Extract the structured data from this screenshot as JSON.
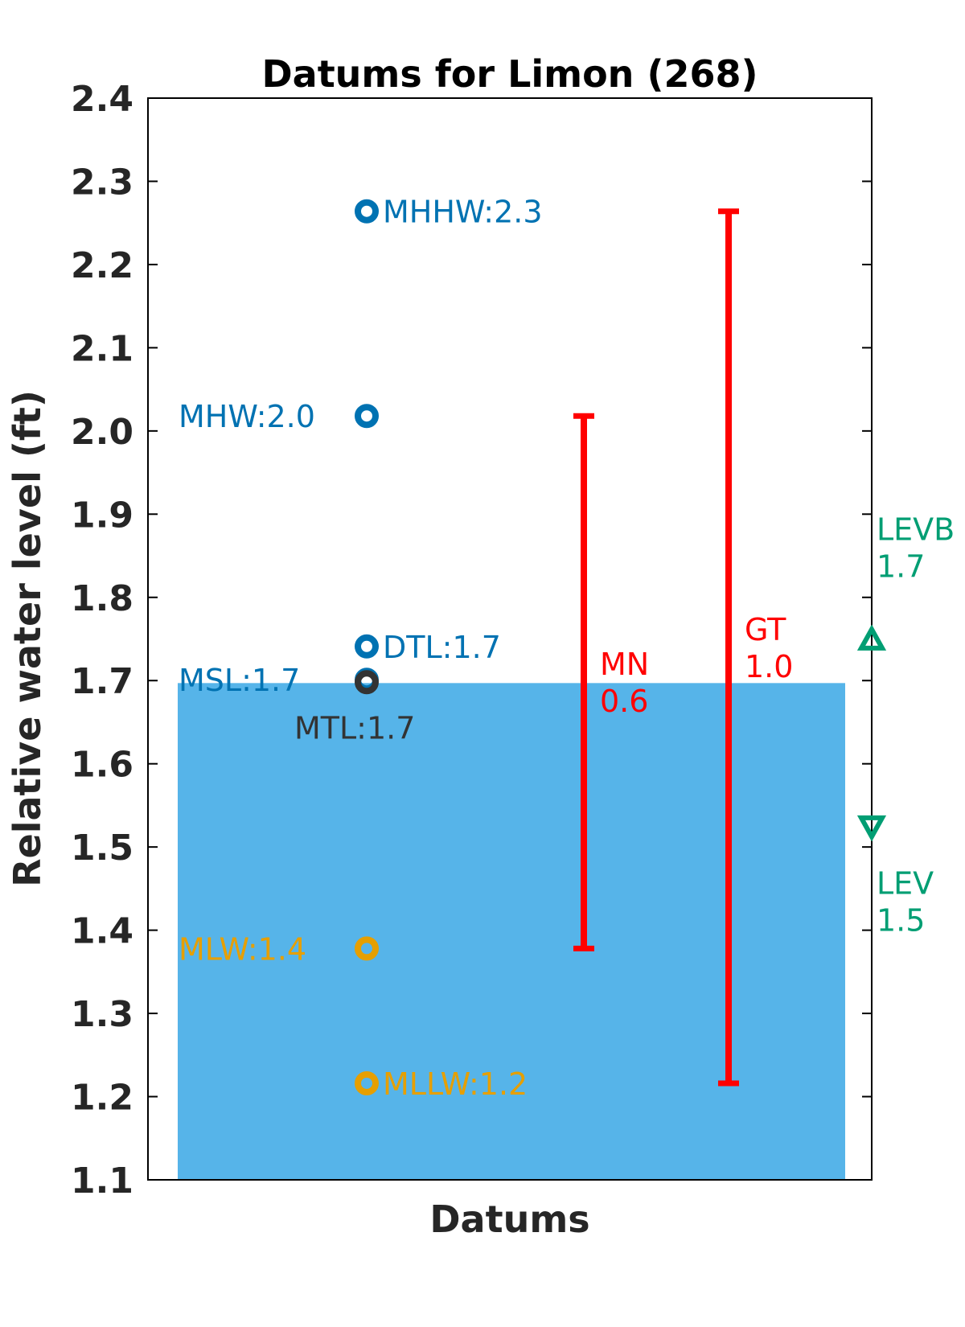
{
  "chart_data": {
    "type": "scatter",
    "title": "Datums for Limon (268)",
    "xlabel": "Datums",
    "ylabel": "Relative water level (ft)",
    "ylim": [
      1.1,
      2.4
    ],
    "yticks": [
      "1.1",
      "1.2",
      "1.3",
      "1.4",
      "1.5",
      "1.6",
      "1.7",
      "1.8",
      "1.9",
      "2.0",
      "2.1",
      "2.2",
      "2.3",
      "2.4"
    ],
    "grid": false,
    "water_level": {
      "value": 1.697,
      "color": "#56B4E9"
    },
    "datums": [
      {
        "name": "MHHW",
        "label": "MHHW:2.3",
        "value": 2.264,
        "color": "#0072B2",
        "label_side": "right"
      },
      {
        "name": "MHW",
        "label": "MHW:2.0",
        "value": 2.018,
        "color": "#0072B2",
        "label_side": "left"
      },
      {
        "name": "DTL",
        "label": "DTL:1.7",
        "value": 1.741,
        "color": "#0072B2",
        "label_side": "right"
      },
      {
        "name": "MSL",
        "label": "MSL:1.7",
        "value": 1.701,
        "color": "#0072B2",
        "label_side": "left"
      },
      {
        "name": "MTL",
        "label": "MTL:1.7",
        "value": 1.698,
        "color": "#333333",
        "label_side": "below"
      },
      {
        "name": "MLW",
        "label": "MLW:1.4",
        "value": 1.378,
        "color": "#E69F00",
        "label_side": "left"
      },
      {
        "name": "MLLW",
        "label": "MLLW:1.2",
        "value": 1.216,
        "color": "#E69F00",
        "label_side": "right"
      }
    ],
    "ranges": [
      {
        "name": "MN",
        "label_line1": "MN",
        "label_line2": "0.6",
        "low": 1.378,
        "high": 2.018,
        "color": "#FF0000"
      },
      {
        "name": "GT",
        "label_line1": "GT",
        "label_line2": "1.0",
        "low": 1.216,
        "high": 2.264,
        "color": "#FF0000"
      }
    ],
    "extremes": [
      {
        "name": "LEVB",
        "label_line1": "LEVB",
        "label_line2": "1.7",
        "value": 1.749,
        "marker": "triangle-up",
        "color": "#009E73"
      },
      {
        "name": "LEV",
        "label_line1": "LEV",
        "label_line2": "1.5",
        "value": 1.525,
        "marker": "triangle-down",
        "color": "#009E73"
      }
    ]
  }
}
